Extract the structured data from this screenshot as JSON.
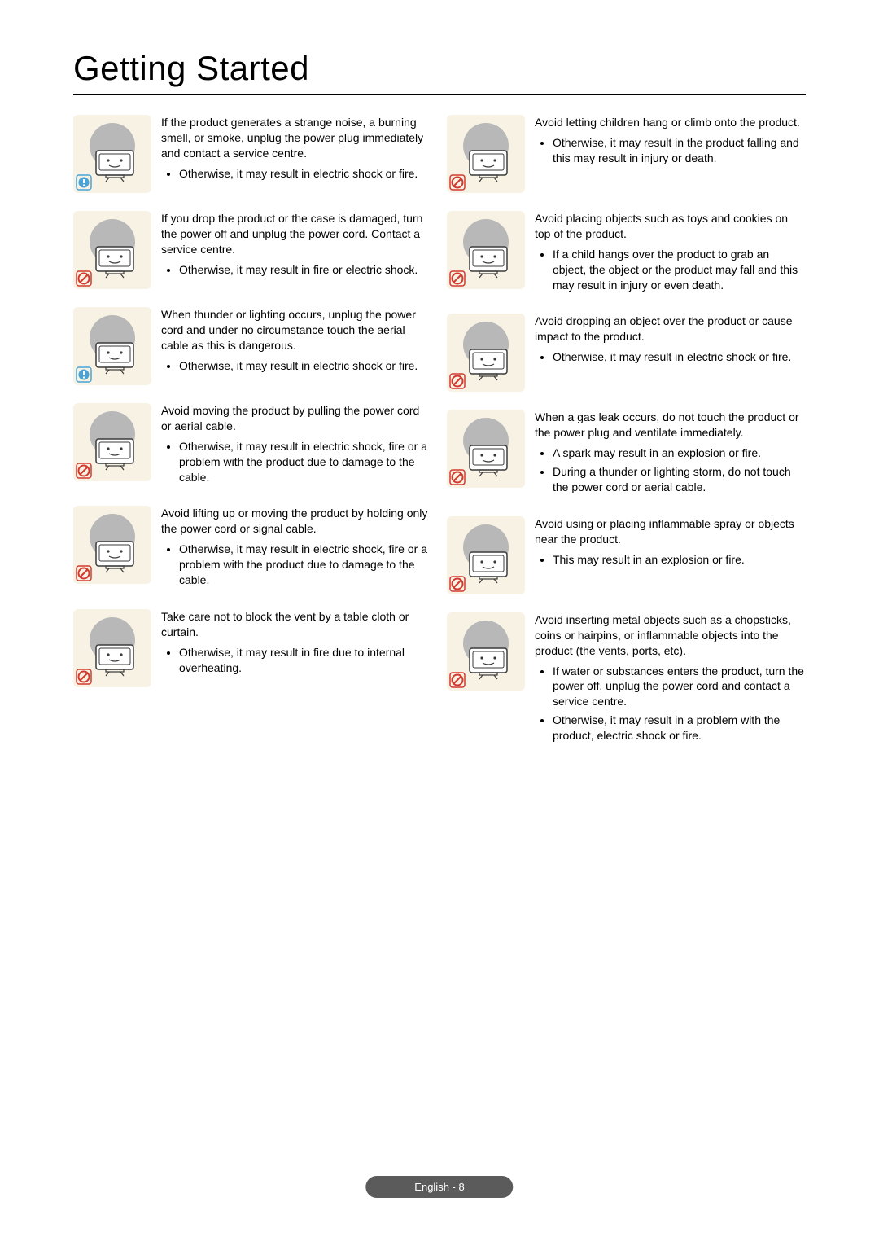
{
  "page": {
    "title": "Getting Started",
    "footer": "English - 8"
  },
  "icon_colors": {
    "bg": "#f7f2e4",
    "circle": "#b8b8b8",
    "stroke": "#3a3a3a",
    "warn_box": "#4aa3d4",
    "warn_fill": "#ffffff",
    "prohibit": "#d33a2f"
  },
  "left": [
    {
      "badge": "warn",
      "lead": "If the product generates a strange noise, a burning smell, or smoke, unplug the power plug immediately and contact a service centre.",
      "bullets": [
        "Otherwise, it may result in electric shock or fire."
      ]
    },
    {
      "badge": "prohibit",
      "lead": "If you drop the product or the case is damaged, turn the power off and unplug the power cord. Contact a service centre.",
      "bullets": [
        "Otherwise, it may result in fire or electric shock."
      ]
    },
    {
      "badge": "warn",
      "lead": "When thunder or lighting occurs, unplug the power cord and under no circumstance touch the aerial cable as this is dangerous.",
      "bullets": [
        "Otherwise, it may result in electric shock or fire."
      ]
    },
    {
      "badge": "prohibit",
      "lead": "Avoid moving the product by pulling the power cord or aerial cable.",
      "bullets": [
        "Otherwise, it may result in electric shock, fire or a problem with the product due to damage to the cable."
      ]
    },
    {
      "badge": "prohibit",
      "lead": "Avoid lifting up or moving the product by holding only the power cord or signal cable.",
      "bullets": [
        "Otherwise, it may result in electric shock, fire or a problem with the product due to damage to the cable."
      ]
    },
    {
      "badge": "prohibit",
      "lead": "Take care not to block the vent by a table cloth or curtain.",
      "bullets": [
        "Otherwise, it may result in fire due to internal overheating."
      ]
    }
  ],
  "right": [
    {
      "badge": "prohibit",
      "lead": "Avoid letting children hang or climb onto the product.",
      "bullets": [
        "Otherwise, it may result in the product falling and this may result in injury or death."
      ]
    },
    {
      "badge": "prohibit",
      "lead": "Avoid placing objects such as toys and cookies on top of the product.",
      "bullets": [
        "If a child hangs over the product to grab an object, the object or the product may fall and this may result in injury or even death."
      ]
    },
    {
      "badge": "prohibit",
      "lead": "Avoid dropping an object over the product or cause impact to the product.",
      "bullets": [
        "Otherwise, it may result in electric shock or fire."
      ]
    },
    {
      "badge": "prohibit",
      "lead": "When a gas leak occurs, do not touch the product or the power plug and ventilate immediately.",
      "bullets": [
        "A spark may result in an explosion or fire.",
        "During a thunder or lighting storm, do not touch the power cord or aerial cable."
      ]
    },
    {
      "badge": "prohibit",
      "lead": "Avoid using or placing inflammable spray or objects near the product.",
      "bullets": [
        "This may result in an explosion or fire."
      ]
    },
    {
      "badge": "prohibit",
      "lead": "Avoid inserting metal objects such as a chopsticks, coins or hairpins, or inflammable objects into the product (the vents, ports, etc).",
      "bullets": [
        "If water or substances enters the product, turn the power off, unplug the power cord and contact a service centre.",
        "Otherwise, it may result in a problem with the product, electric shock or fire."
      ]
    }
  ]
}
